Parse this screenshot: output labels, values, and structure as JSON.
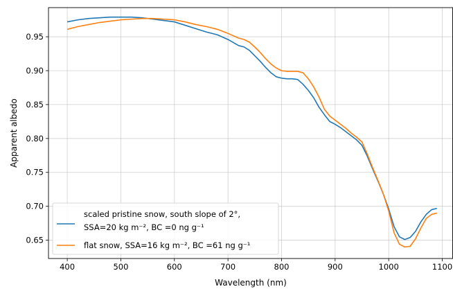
{
  "chart_data": {
    "type": "line",
    "xlabel": "Wavelength (nm)",
    "ylabel": "Apparent albedo",
    "xlim": [
      365,
      1120
    ],
    "ylim": [
      0.623,
      0.993
    ],
    "xticks": [
      400,
      500,
      600,
      700,
      800,
      900,
      1000,
      1100
    ],
    "yticks": [
      0.65,
      0.7,
      0.75,
      0.8,
      0.85,
      0.9,
      0.95
    ],
    "x_tick_labels": [
      "400",
      "500",
      "600",
      "700",
      "800",
      "900",
      "1000",
      "1100"
    ],
    "y_tick_labels": [
      "0.65",
      "0.70",
      "0.75",
      "0.80",
      "0.85",
      "0.90",
      "0.95"
    ],
    "grid": true,
    "legend_position": "bottom-left",
    "series": [
      {
        "label_lines": [
          "scaled pristine snow, south slope of 2°,",
          "SSA=20 kg m⁻², BC =0 ng g⁻¹"
        ],
        "color": "#1f77b4",
        "x": [
          400,
          420,
          440,
          460,
          480,
          500,
          520,
          540,
          560,
          580,
          600,
          620,
          640,
          660,
          680,
          700,
          720,
          730,
          740,
          750,
          760,
          770,
          780,
          790,
          800,
          810,
          820,
          830,
          840,
          850,
          860,
          870,
          880,
          890,
          900,
          910,
          920,
          930,
          940,
          950,
          960,
          970,
          980,
          990,
          1000,
          1010,
          1020,
          1030,
          1040,
          1050,
          1060,
          1070,
          1080,
          1090
        ],
        "y": [
          0.972,
          0.975,
          0.977,
          0.978,
          0.979,
          0.979,
          0.979,
          0.978,
          0.976,
          0.974,
          0.972,
          0.967,
          0.962,
          0.957,
          0.953,
          0.946,
          0.937,
          0.935,
          0.93,
          0.922,
          0.914,
          0.905,
          0.897,
          0.891,
          0.889,
          0.888,
          0.888,
          0.887,
          0.88,
          0.871,
          0.86,
          0.846,
          0.835,
          0.825,
          0.821,
          0.816,
          0.81,
          0.804,
          0.798,
          0.79,
          0.774,
          0.755,
          0.737,
          0.718,
          0.696,
          0.67,
          0.655,
          0.651,
          0.654,
          0.663,
          0.677,
          0.688,
          0.695,
          0.697
        ]
      },
      {
        "label_lines": [
          "flat snow, SSA=16 kg m⁻², BC =61 ng g⁻¹"
        ],
        "color": "#ff7f0e",
        "x": [
          400,
          420,
          440,
          460,
          480,
          500,
          520,
          540,
          560,
          580,
          600,
          620,
          640,
          660,
          680,
          700,
          720,
          730,
          740,
          750,
          760,
          770,
          780,
          790,
          800,
          810,
          820,
          830,
          840,
          850,
          860,
          870,
          880,
          890,
          900,
          910,
          920,
          930,
          940,
          950,
          960,
          970,
          980,
          990,
          1000,
          1010,
          1020,
          1030,
          1040,
          1050,
          1060,
          1070,
          1080,
          1090
        ],
        "y": [
          0.961,
          0.965,
          0.968,
          0.971,
          0.973,
          0.975,
          0.976,
          0.977,
          0.977,
          0.976,
          0.975,
          0.972,
          0.968,
          0.965,
          0.961,
          0.955,
          0.948,
          0.946,
          0.942,
          0.935,
          0.927,
          0.918,
          0.91,
          0.904,
          0.9,
          0.899,
          0.899,
          0.899,
          0.897,
          0.888,
          0.876,
          0.861,
          0.843,
          0.833,
          0.827,
          0.821,
          0.815,
          0.808,
          0.802,
          0.795,
          0.777,
          0.757,
          0.738,
          0.718,
          0.693,
          0.661,
          0.644,
          0.64,
          0.641,
          0.652,
          0.668,
          0.682,
          0.688,
          0.69
        ]
      }
    ]
  }
}
